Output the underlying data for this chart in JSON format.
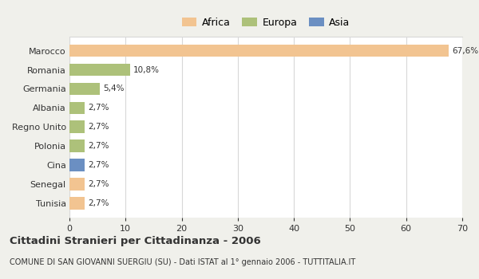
{
  "countries": [
    "Marocco",
    "Romania",
    "Germania",
    "Albania",
    "Regno Unito",
    "Polonia",
    "Cina",
    "Senegal",
    "Tunisia"
  ],
  "values": [
    67.6,
    10.8,
    5.4,
    2.7,
    2.7,
    2.7,
    2.7,
    2.7,
    2.7
  ],
  "labels": [
    "67,6%",
    "10,8%",
    "5,4%",
    "2,7%",
    "2,7%",
    "2,7%",
    "2,7%",
    "2,7%",
    "2,7%"
  ],
  "colors": [
    "#f2c491",
    "#adc17a",
    "#adc17a",
    "#adc17a",
    "#adc17a",
    "#adc17a",
    "#6b8fc2",
    "#f2c491",
    "#f2c491"
  ],
  "legend_labels": [
    "Africa",
    "Europa",
    "Asia"
  ],
  "legend_colors": [
    "#f2c491",
    "#adc17a",
    "#6b8fc2"
  ],
  "title": "Cittadini Stranieri per Cittadinanza - 2006",
  "subtitle": "COMUNE DI SAN GIOVANNI SUERGIU (SU) - Dati ISTAT al 1° gennaio 2006 - TUTTITALIA.IT",
  "xlim": [
    0,
    70
  ],
  "xticks": [
    0,
    10,
    20,
    30,
    40,
    50,
    60,
    70
  ],
  "outer_bg": "#f0f0eb",
  "plot_bg": "#ffffff",
  "grid_color": "#d8d8d8",
  "text_color": "#333333"
}
